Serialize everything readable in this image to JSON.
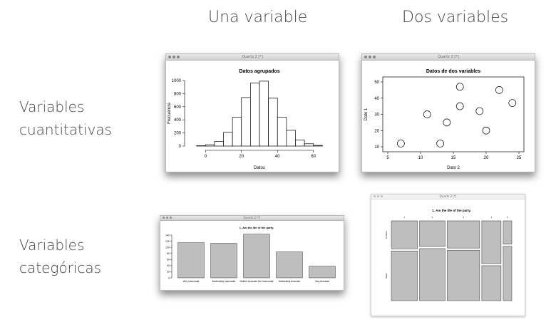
{
  "headers": {
    "col1": "Una variable",
    "col2": "Dos variables",
    "row1_line1": "Variables",
    "row1_line2": "cuantitativas",
    "row2_line1": "Variables",
    "row2_line2": "categóricas"
  },
  "window_title": "Quartz 2 [*]",
  "colors": {
    "bar_fill": "#bebebe",
    "axis": "#000000",
    "page_bg": "#ffffff"
  },
  "chart_data": [
    {
      "type": "bar",
      "title": "Datos agrupados",
      "xlabel": "Datos",
      "ylabel": "Frecuencia",
      "bin_edges": [
        -5,
        0,
        5,
        10,
        15,
        20,
        25,
        30,
        35,
        40,
        45,
        50,
        55,
        60,
        65
      ],
      "values": [
        5,
        20,
        70,
        210,
        440,
        740,
        960,
        990,
        730,
        440,
        240,
        90,
        35,
        10
      ],
      "xlim": [
        -10,
        70
      ],
      "ylim": [
        0,
        1000
      ],
      "xticks": [
        0,
        20,
        40,
        60
      ],
      "yticks": [
        0,
        200,
        400,
        600,
        800,
        1000
      ]
    },
    {
      "type": "scatter",
      "title": "Datos de dos variables",
      "xlabel": "Dato 2",
      "ylabel": "Dato 1",
      "points": [
        [
          7,
          12
        ],
        [
          11,
          30
        ],
        [
          13,
          12
        ],
        [
          14,
          25
        ],
        [
          16,
          47
        ],
        [
          16,
          35
        ],
        [
          19,
          32
        ],
        [
          20,
          20
        ],
        [
          22,
          45
        ],
        [
          24,
          37
        ]
      ],
      "xlim": [
        5,
        25
      ],
      "ylim": [
        10,
        50
      ],
      "xticks": [
        5,
        10,
        15,
        20,
        25
      ],
      "yticks": [
        10,
        20,
        30,
        40,
        50
      ]
    },
    {
      "type": "bar",
      "title": "1. Am the life of the party.",
      "categories": [
        "Very Inaccurate",
        "Moderately Inaccurate",
        "Neither Accurate Nor Inaccurate",
        "Moderately Accurate",
        "Very Accurate"
      ],
      "values": [
        115,
        113,
        143,
        85,
        38
      ],
      "ylim": [
        0,
        140
      ],
      "yticks": [
        0,
        20,
        40,
        60,
        80,
        100,
        120,
        140
      ]
    },
    {
      "type": "heatmap",
      "title": "1. Am the life of the party.",
      "x_categories": [
        "1",
        "2",
        "3",
        "4",
        "5"
      ],
      "y_categories": [
        "Hombre",
        "Mujer"
      ],
      "column_widths": [
        115,
        113,
        143,
        85,
        38
      ],
      "top_share": [
        0.36,
        0.33,
        0.35,
        0.55,
        0.3
      ]
    }
  ]
}
